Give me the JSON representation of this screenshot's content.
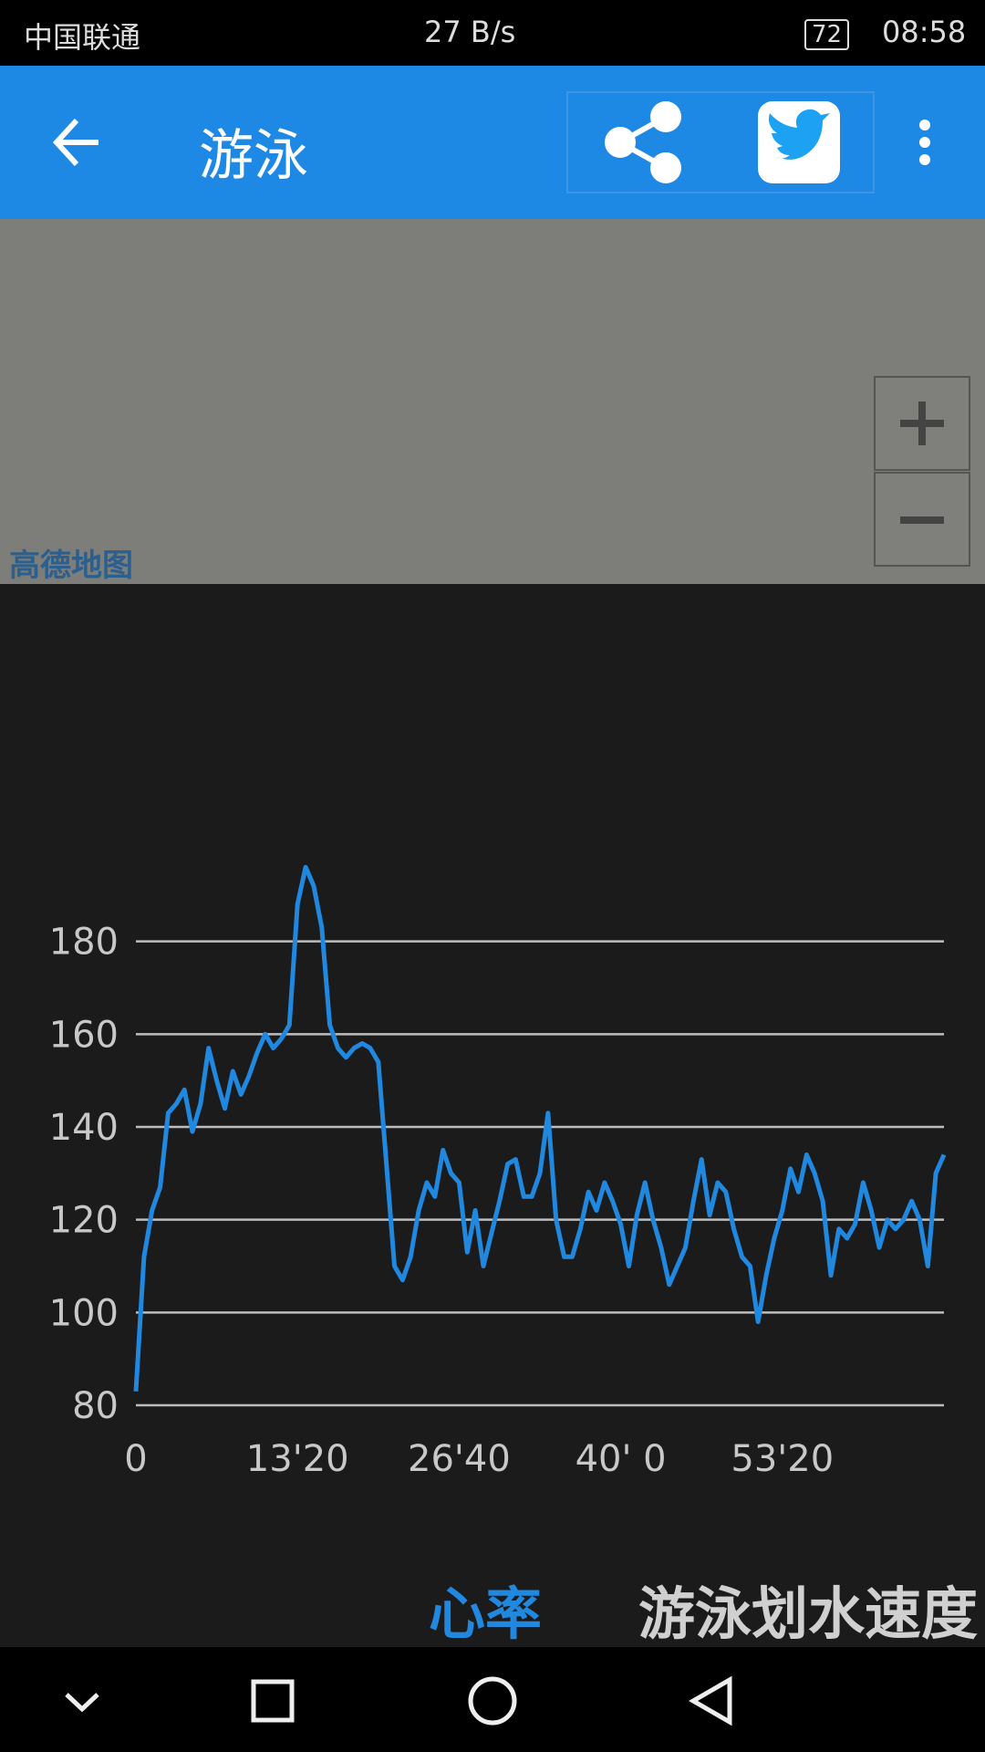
{
  "status_bar": {
    "carrier": "中国联通",
    "speed": "27 B/s",
    "battery": "72",
    "time": "08:58"
  },
  "app_bar": {
    "title": "游泳"
  },
  "map": {
    "attribution": "高德地图"
  },
  "tabs": [
    "心率",
    "游泳划水速度"
  ],
  "chart_data": {
    "type": "line",
    "color": "#2188e0",
    "grid": true,
    "x": [
      0,
      40,
      80,
      120,
      160,
      200,
      240,
      280,
      320,
      360,
      400,
      440,
      480,
      520,
      560,
      600,
      640,
      680,
      720,
      760,
      800,
      840,
      880,
      920,
      960,
      1000,
      1040,
      1080,
      1120,
      1160,
      1200,
      1240,
      1280,
      1320,
      1360,
      1400,
      1440,
      1480,
      1520,
      1560,
      1600,
      1640,
      1680,
      1720,
      1760,
      1800,
      1840,
      1880,
      1920,
      1960,
      2000,
      2040,
      2080,
      2120,
      2160,
      2200,
      2240,
      2280,
      2320,
      2360,
      2400,
      2440,
      2480,
      2520,
      2560,
      2600,
      2640,
      2680,
      2720,
      2760,
      2800,
      2840,
      2880,
      2920,
      2960,
      3000,
      3040,
      3080,
      3120,
      3160,
      3200,
      3240,
      3280,
      3320,
      3360,
      3400,
      3440,
      3480,
      3520,
      3560,
      3600,
      3640,
      3680,
      3720,
      3760,
      3800,
      3840,
      3880,
      3920,
      3960,
      4000
    ],
    "values": [
      83,
      112,
      122,
      127,
      143,
      145,
      148,
      139,
      145,
      157,
      150,
      144,
      152,
      147,
      151,
      156,
      160,
      157,
      159,
      162,
      188,
      196,
      192,
      183,
      162,
      157,
      155,
      157,
      158,
      157,
      154,
      132,
      110,
      107,
      112,
      122,
      128,
      125,
      135,
      130,
      128,
      113,
      122,
      110,
      117,
      124,
      132,
      133,
      125,
      125,
      130,
      143,
      120,
      112,
      112,
      118,
      126,
      122,
      128,
      124,
      119,
      110,
      121,
      128,
      120,
      114,
      106,
      110,
      114,
      124,
      133,
      121,
      128,
      126,
      118,
      112,
      110,
      98,
      108,
      116,
      122,
      131,
      126,
      134,
      130,
      124,
      108,
      118,
      116,
      119,
      128,
      122,
      114,
      120,
      118,
      120,
      124,
      120,
      110,
      130,
      134
    ],
    "xlim": [
      0,
      4000
    ],
    "xticks": [
      0,
      {
        "value": 800,
        "label": "13'20"
      },
      {
        "value": 1600,
        "label": "26'40"
      },
      {
        "value": 2400,
        "label": "40' 0"
      },
      {
        "value": 3200,
        "label": "53'20"
      }
    ],
    "ylim": [
      80,
      200
    ],
    "yticks": [
      80,
      100,
      120,
      140,
      160,
      180
    ]
  }
}
